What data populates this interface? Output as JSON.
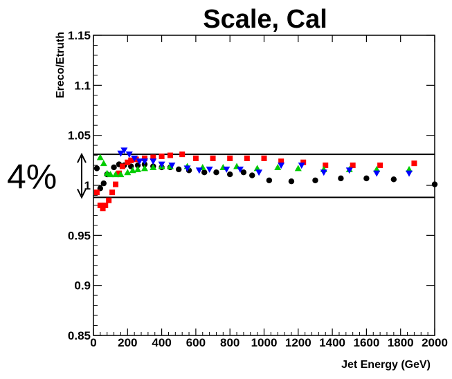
{
  "chart_data": {
    "type": "scatter",
    "title": "Scale, Cal",
    "xlabel": "Jet Energy (GeV)",
    "ylabel": "Ereco/Etruth",
    "xlim": [
      0,
      2000
    ],
    "ylim": [
      0.85,
      1.15
    ],
    "xticks": [
      0,
      200,
      400,
      600,
      800,
      1000,
      1200,
      1400,
      1600,
      1800,
      2000
    ],
    "xtick_labels": [
      "0",
      "200",
      "400",
      "600",
      "800",
      "1000",
      "1200",
      "1400",
      "1600",
      "1800",
      "2000"
    ],
    "yticks": [
      0.85,
      0.9,
      0.95,
      1.0,
      1.05,
      1.1,
      1.15
    ],
    "ytick_labels": [
      "0.85",
      "0.9",
      "0.95",
      "1",
      "1.05",
      "1.1",
      "1.15"
    ],
    "grid": false,
    "band": {
      "low": 0.988,
      "high": 1.031,
      "label": "4%"
    },
    "series": [
      {
        "color": "#000000",
        "marker": "circle",
        "points": [
          [
            20,
            1.017
          ],
          [
            40,
            0.997
          ],
          [
            60,
            1.002
          ],
          [
            80,
            1.011
          ],
          [
            120,
            1.018
          ],
          [
            150,
            1.021
          ],
          [
            180,
            1.02
          ],
          [
            220,
            1.019
          ],
          [
            260,
            1.02
          ],
          [
            300,
            1.021
          ],
          [
            350,
            1.019
          ],
          [
            400,
            1.018
          ],
          [
            450,
            1.018
          ],
          [
            500,
            1.016
          ],
          [
            560,
            1.015
          ],
          [
            650,
            1.013
          ],
          [
            720,
            1.013
          ],
          [
            800,
            1.011
          ],
          [
            880,
            1.013
          ],
          [
            930,
            1.01
          ],
          [
            1030,
            1.005
          ],
          [
            1160,
            1.004
          ],
          [
            1300,
            1.005
          ],
          [
            1450,
            1.007
          ],
          [
            1600,
            1.007
          ],
          [
            1760,
            1.006
          ],
          [
            2000,
            1.001
          ]
        ]
      },
      {
        "color": "#ff0000",
        "marker": "square",
        "points": [
          [
            20,
            0.993
          ],
          [
            40,
            0.98
          ],
          [
            55,
            0.977
          ],
          [
            70,
            0.98
          ],
          [
            90,
            0.985
          ],
          [
            110,
            0.993
          ],
          [
            130,
            1.001
          ],
          [
            150,
            1.012
          ],
          [
            170,
            1.019
          ],
          [
            200,
            1.023
          ],
          [
            220,
            1.025
          ],
          [
            250,
            1.026
          ],
          [
            300,
            1.027
          ],
          [
            350,
            1.028
          ],
          [
            400,
            1.029
          ],
          [
            450,
            1.03
          ],
          [
            520,
            1.031
          ],
          [
            600,
            1.027
          ],
          [
            700,
            1.027
          ],
          [
            800,
            1.027
          ],
          [
            900,
            1.027
          ],
          [
            1000,
            1.027
          ],
          [
            1100,
            1.024
          ],
          [
            1230,
            1.023
          ],
          [
            1360,
            1.02
          ],
          [
            1520,
            1.02
          ],
          [
            1680,
            1.02
          ],
          [
            1880,
            1.022
          ]
        ]
      },
      {
        "color": "#00cc00",
        "marker": "triangle-up",
        "points": [
          [
            40,
            1.028
          ],
          [
            60,
            1.022
          ],
          [
            80,
            1.012
          ],
          [
            100,
            1.011
          ],
          [
            130,
            1.011
          ],
          [
            160,
            1.011
          ],
          [
            200,
            1.013
          ],
          [
            230,
            1.015
          ],
          [
            260,
            1.016
          ],
          [
            300,
            1.017
          ],
          [
            350,
            1.018
          ],
          [
            400,
            1.019
          ],
          [
            450,
            1.019
          ],
          [
            550,
            1.019
          ],
          [
            640,
            1.018
          ],
          [
            760,
            1.018
          ],
          [
            840,
            1.019
          ],
          [
            960,
            1.017
          ],
          [
            1080,
            1.018
          ],
          [
            1200,
            1.017
          ],
          [
            1350,
            1.016
          ],
          [
            1500,
            1.016
          ],
          [
            1660,
            1.016
          ],
          [
            1850,
            1.016
          ]
        ]
      },
      {
        "color": "#0000ff",
        "marker": "triangle-down",
        "points": [
          [
            160,
            1.032
          ],
          [
            180,
            1.035
          ],
          [
            210,
            1.031
          ],
          [
            240,
            1.027
          ],
          [
            270,
            1.024
          ],
          [
            300,
            1.024
          ],
          [
            350,
            1.024
          ],
          [
            400,
            1.021
          ],
          [
            460,
            1.02
          ],
          [
            550,
            1.017
          ],
          [
            620,
            1.015
          ],
          [
            680,
            1.016
          ],
          [
            780,
            1.016
          ],
          [
            860,
            1.016
          ],
          [
            970,
            1.013
          ],
          [
            1100,
            1.02
          ],
          [
            1220,
            1.02
          ],
          [
            1350,
            1.013
          ],
          [
            1500,
            1.015
          ],
          [
            1660,
            1.012
          ],
          [
            1850,
            1.012
          ]
        ]
      }
    ]
  }
}
